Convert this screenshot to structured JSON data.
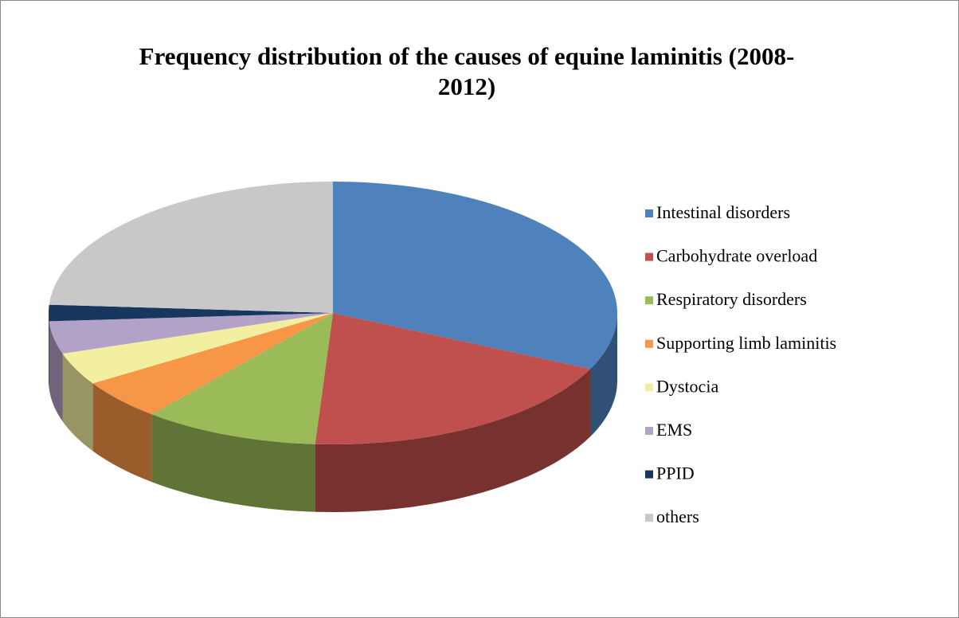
{
  "chart_data": {
    "type": "pie",
    "title": "Frequency distribution of the causes of equine laminitis (2008-2012)",
    "categories": [
      "Intestinal disorders",
      "Carbohydrate overload",
      "Respiratory disorders",
      "Supporting limb laminitis",
      "Dystocia",
      "EMS",
      "PPID",
      "others"
    ],
    "values": [
      32,
      19,
      10,
      5,
      4,
      4,
      2,
      24
    ],
    "colors": [
      "#4f81bd",
      "#c0504d",
      "#9bbb59",
      "#f79646",
      "#f2f0a0",
      "#b3a2c7",
      "#17375e",
      "#c8c8c8"
    ],
    "legend": "right"
  }
}
